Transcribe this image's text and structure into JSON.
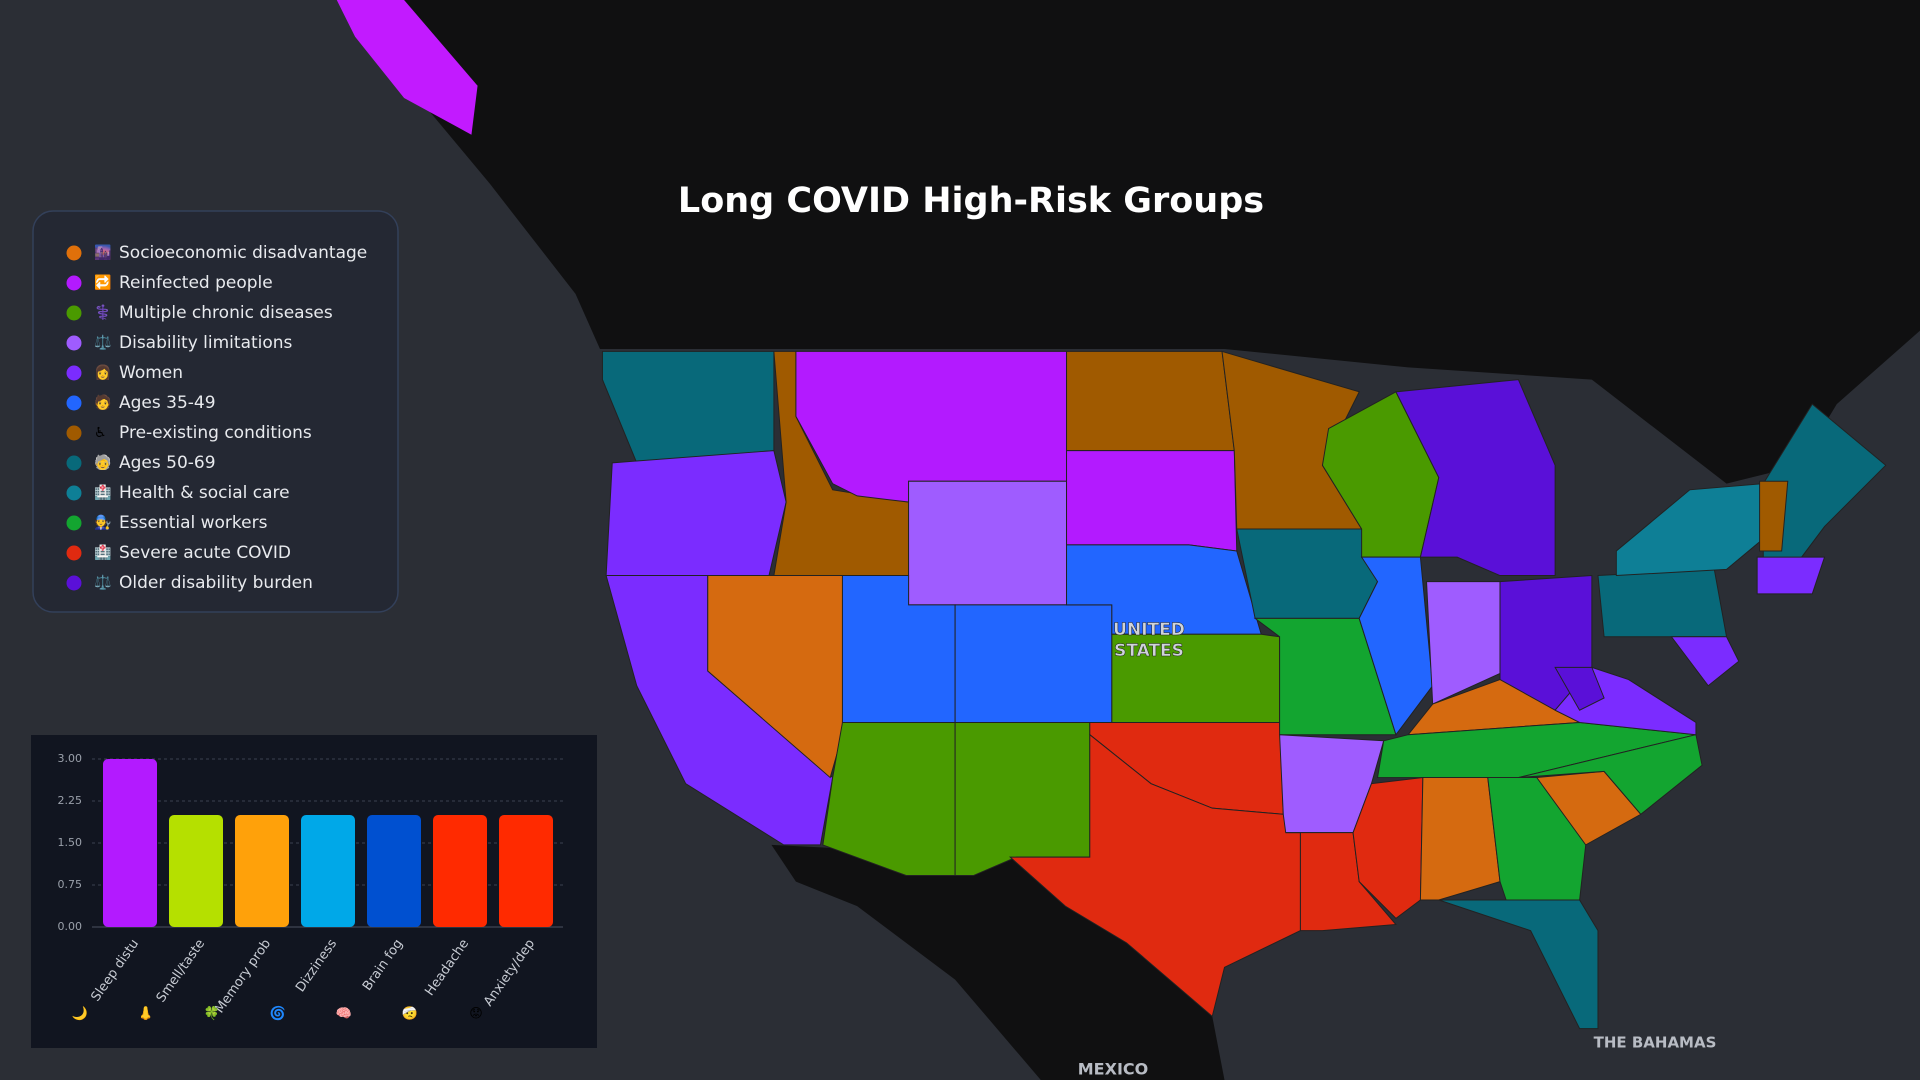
{
  "title": "Long COVID High-Risk Groups",
  "legend": [
    {
      "color": "#e0700a",
      "icon": "🌆",
      "label": "Socioeconomic disadvantage"
    },
    {
      "color": "#b31aff",
      "icon": "🔁",
      "label": "Reinfected people"
    },
    {
      "color": "#4a9a00",
      "icon": "⚕️",
      "label": "Multiple chronic diseases"
    },
    {
      "color": "#9f5cff",
      "icon": "⚖️",
      "label": "Disability limitations"
    },
    {
      "color": "#7b2cff",
      "icon": "👩",
      "label": "Women"
    },
    {
      "color": "#2266ff",
      "icon": "🧑",
      "label": "Ages 35-49"
    },
    {
      "color": "#a05a00",
      "icon": "♿",
      "label": "Pre-existing conditions"
    },
    {
      "color": "#08697a",
      "icon": "🧓",
      "label": "Ages 50-69"
    },
    {
      "color": "#0e7f96",
      "icon": "🏥",
      "label": "Health & social care"
    },
    {
      "color": "#13a530",
      "icon": "🧑‍🔧",
      "label": "Essential workers"
    },
    {
      "color": "#e02a10",
      "icon": "🏥",
      "label": "Severe acute COVID"
    },
    {
      "color": "#5a10d8",
      "icon": "⚖️",
      "label": "Older disability burden"
    }
  ],
  "map_labels": {
    "country": [
      "UNITED",
      "STATES"
    ],
    "mexico": "MEXICO",
    "bahamas": "THE BAHAMAS"
  },
  "chart_data": {
    "type": "bar",
    "categories": [
      "Sleep distu",
      "Smell/taste",
      "Memory prob",
      "Dizziness",
      "Brain fog",
      "Headache",
      "Anxiety/dep"
    ],
    "category_icons": [
      "🌙",
      "👃",
      "🍀",
      "🌀",
      "🧠",
      "🤕",
      "😟"
    ],
    "values": [
      3,
      2,
      2,
      2,
      2,
      2,
      2
    ],
    "colors": [
      "#b31aff",
      "#b5e000",
      "#ffa10a",
      "#00a8e8",
      "#0050d0",
      "#ff2a00",
      "#ff2a00"
    ],
    "ylim": [
      0,
      3
    ],
    "yticks": [
      {
        "value": 0,
        "label": "0.00"
      },
      {
        "value": 0.75,
        "label": "0.75"
      },
      {
        "value": 1.5,
        "label": "1.50"
      },
      {
        "value": 2.25,
        "label": "2.25"
      },
      {
        "value": 3,
        "label": "3.00"
      }
    ],
    "grid": true
  }
}
